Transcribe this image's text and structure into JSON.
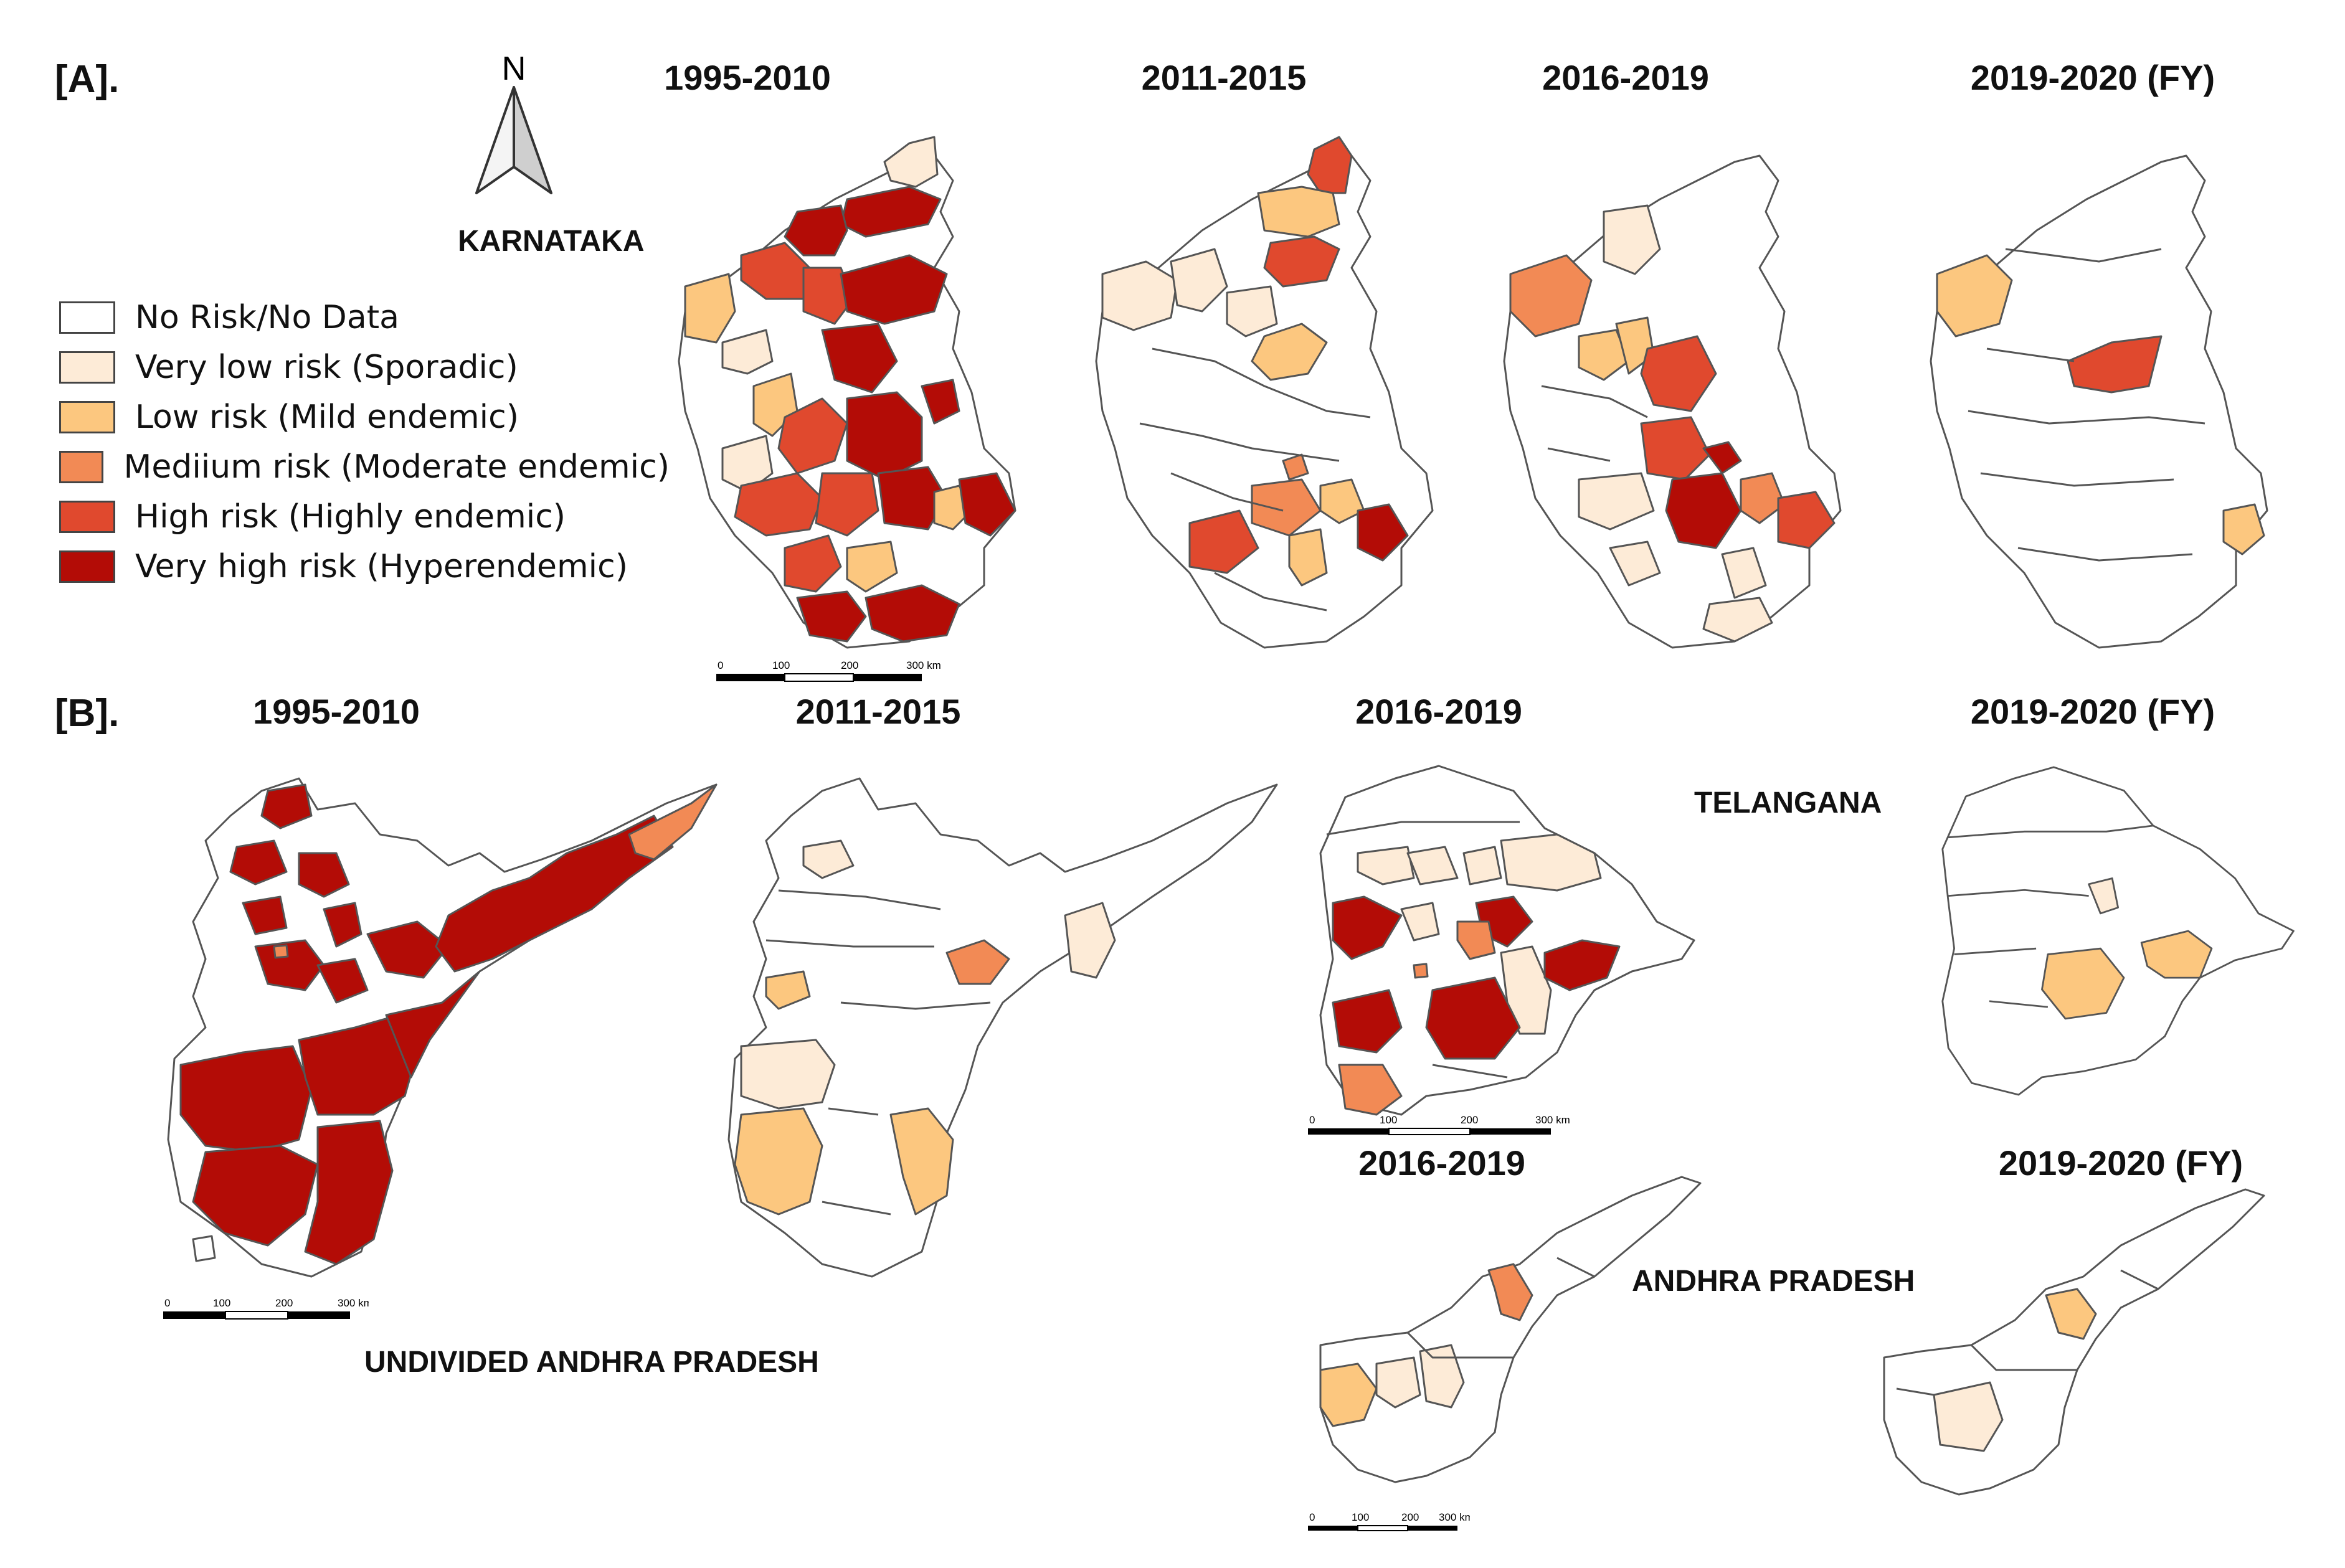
{
  "panels": {
    "a_label": "[A].",
    "b_label": "[B]."
  },
  "north_arrow": {
    "letter": "N",
    "icon": "north-arrow-icon"
  },
  "state_labels": {
    "karnataka": "KARNATAKA",
    "telangana": "TELANGANA",
    "andhra_pradesh": "ANDHRA PRADESH",
    "undivided_ap": "UNDIVIDED ANDHRA PRADESH"
  },
  "legend": {
    "items": [
      {
        "label": "No Risk/No Data",
        "color": "#ffffff"
      },
      {
        "label": "Very low risk (Sporadic)",
        "color": "#fdebd7"
      },
      {
        "label": "Low risk (Mild endemic)",
        "color": "#fcc77f"
      },
      {
        "label": "Mediium risk (Moderate endemic)",
        "color": "#f28a55"
      },
      {
        "label": "High risk (Highly endemic)",
        "color": "#e0492e"
      },
      {
        "label": "Very high risk (Hyperendemic)",
        "color": "#b30c06"
      }
    ]
  },
  "maps": {
    "karnataka": [
      {
        "title": "1995-2010"
      },
      {
        "title": "2011-2015"
      },
      {
        "title": "2016-2019"
      },
      {
        "title": "2019-2020 (FY)"
      }
    ],
    "undivided_ap": [
      {
        "title": "1995-2010"
      },
      {
        "title": "2011-2015"
      }
    ],
    "telangana": [
      {
        "title": "2016-2019"
      },
      {
        "title": "2019-2020 (FY)"
      }
    ],
    "andhra_pradesh": [
      {
        "title": "2016-2019"
      },
      {
        "title": "2019-2020 (FY)"
      }
    ]
  },
  "scale_bars": {
    "ticks": [
      "0",
      "100",
      "200",
      "300 km"
    ]
  }
}
